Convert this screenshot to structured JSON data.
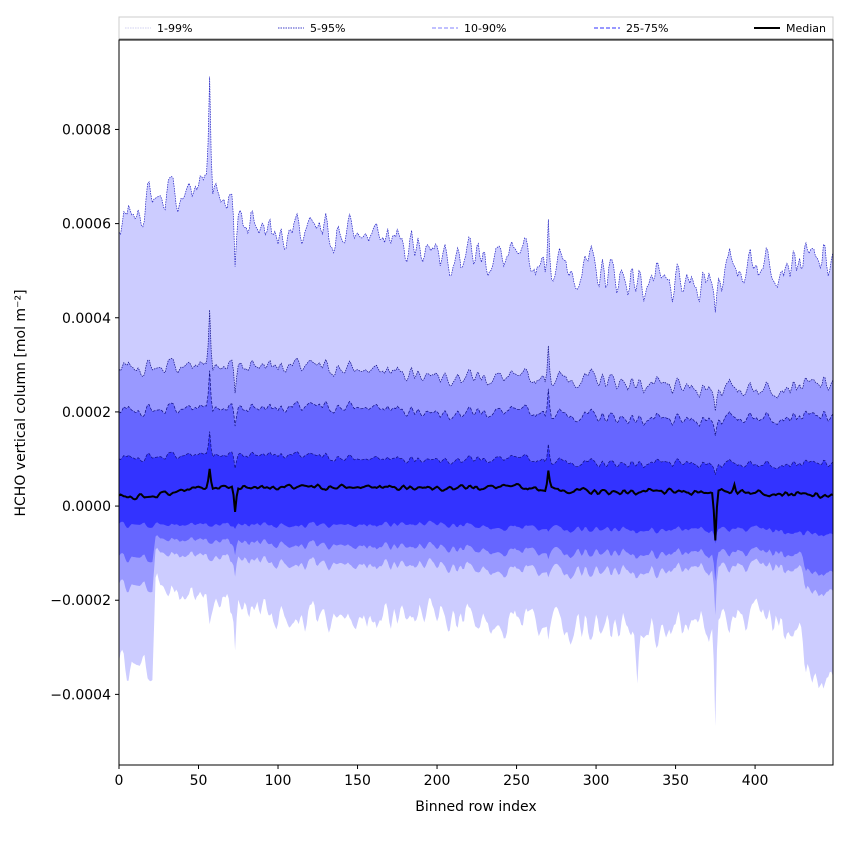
{
  "chart_data": {
    "type": "area",
    "xlabel": "Binned row index",
    "ylabel": "HCHO vertical column [mol m⁻²]",
    "xlim": [
      0,
      449
    ],
    "ylim": [
      -0.00055,
      0.00099
    ],
    "xticks": [
      0,
      50,
      100,
      150,
      200,
      250,
      300,
      350,
      400
    ],
    "yticks": [
      -0.0004,
      -0.0002,
      0.0,
      0.0002,
      0.0004,
      0.0006,
      0.0008
    ],
    "ytick_labels": [
      "−0.0004",
      "−0.0002",
      "0.0000",
      "0.0002",
      "0.0004",
      "0.0006",
      "0.0008"
    ],
    "n_points": 450,
    "legend": {
      "placement": "top, above plot",
      "entries": [
        {
          "label": "1-99%",
          "color": "#d0d0f0",
          "style": "dotted"
        },
        {
          "label": "5-95%",
          "color": "#4040c8",
          "style": "dotted"
        },
        {
          "label": "10-90%",
          "color": "#8080ff",
          "style": "dashed"
        },
        {
          "label": "25-75%",
          "color": "#3030ff",
          "style": "dashed"
        },
        {
          "label": "Median",
          "color": "#000000",
          "style": "solid"
        }
      ]
    },
    "series": [
      {
        "name": "1-99%",
        "fill": "#ccccff",
        "upper_knots": [
          [
            0,
            0.00058
          ],
          [
            10,
            0.00062
          ],
          [
            22,
            0.00066
          ],
          [
            40,
            0.00066
          ],
          [
            57,
            0.0007
          ],
          [
            75,
            0.00062
          ],
          [
            100,
            0.00058
          ],
          [
            150,
            0.00058
          ],
          [
            200,
            0.00055
          ],
          [
            250,
            0.00052
          ],
          [
            300,
            0.0005
          ],
          [
            350,
            0.00046
          ],
          [
            400,
            0.00052
          ],
          [
            449,
            0.00052
          ]
        ],
        "lower_knots": [
          [
            0,
            -0.00034
          ],
          [
            21,
            -0.00034
          ],
          [
            23,
            -0.00017
          ],
          [
            50,
            -0.0002
          ],
          [
            100,
            -0.00023
          ],
          [
            150,
            -0.00024
          ],
          [
            200,
            -0.00024
          ],
          [
            250,
            -0.00024
          ],
          [
            300,
            -0.00026
          ],
          [
            350,
            -0.00026
          ],
          [
            400,
            -0.00024
          ],
          [
            430,
            -0.00026
          ],
          [
            432,
            -0.00036
          ],
          [
            449,
            -0.00036
          ]
        ],
        "spikes": [
          [
            57,
            0.00022,
            -3e-05
          ],
          [
            73,
            -0.00012,
            -0.0001
          ],
          [
            270,
            0.00012,
            -5e-05
          ],
          [
            375,
            -6e-05,
            -0.00022
          ],
          [
            326,
            0.0,
            -8e-05
          ]
        ]
      },
      {
        "name": "5-95%",
        "fill": "#9999ff",
        "upper_knots": [
          [
            0,
            0.00029
          ],
          [
            50,
            0.0003
          ],
          [
            100,
            0.0003
          ],
          [
            150,
            0.00029
          ],
          [
            200,
            0.00028
          ],
          [
            250,
            0.00027
          ],
          [
            300,
            0.00027
          ],
          [
            350,
            0.00025
          ],
          [
            400,
            0.00025
          ],
          [
            449,
            0.00026
          ]
        ],
        "lower_knots": [
          [
            0,
            -0.00017
          ],
          [
            21,
            -0.00017
          ],
          [
            23,
            -0.0001
          ],
          [
            100,
            -0.00012
          ],
          [
            200,
            -0.00013
          ],
          [
            300,
            -0.00014
          ],
          [
            400,
            -0.00013
          ],
          [
            430,
            -0.00013
          ],
          [
            432,
            -0.00018
          ],
          [
            449,
            -0.00018
          ]
        ],
        "spikes": [
          [
            57,
            0.00012,
            0.0
          ],
          [
            73,
            -6e-05,
            -4e-05
          ],
          [
            270,
            8e-05,
            -2e-05
          ],
          [
            375,
            -4e-05,
            -0.0001
          ]
        ]
      },
      {
        "name": "10-90%",
        "fill": "#6666ff",
        "upper_knots": [
          [
            0,
            0.0002
          ],
          [
            50,
            0.00021
          ],
          [
            100,
            0.00021
          ],
          [
            150,
            0.00021
          ],
          [
            200,
            0.0002
          ],
          [
            250,
            0.0002
          ],
          [
            300,
            0.00019
          ],
          [
            350,
            0.00018
          ],
          [
            400,
            0.00019
          ],
          [
            449,
            0.00019
          ]
        ],
        "lower_knots": [
          [
            0,
            -0.00011
          ],
          [
            21,
            -0.00011
          ],
          [
            23,
            -7e-05
          ],
          [
            100,
            -8e-05
          ],
          [
            200,
            -9e-05
          ],
          [
            300,
            -0.0001
          ],
          [
            400,
            -0.0001
          ],
          [
            430,
            -0.0001
          ],
          [
            432,
            -0.00014
          ],
          [
            449,
            -0.00014
          ]
        ],
        "spikes": [
          [
            57,
            8e-05,
            0.0
          ],
          [
            73,
            -4e-05,
            -3e-05
          ],
          [
            270,
            6e-05,
            -2e-05
          ],
          [
            375,
            -3e-05,
            -6e-05
          ]
        ]
      },
      {
        "name": "25-75%",
        "fill": "#3333ff",
        "upper_knots": [
          [
            0,
            0.0001
          ],
          [
            50,
            0.00011
          ],
          [
            100,
            0.00011
          ],
          [
            150,
            0.0001
          ],
          [
            200,
            0.0001
          ],
          [
            250,
            0.0001
          ],
          [
            300,
            9e-05
          ],
          [
            350,
            9e-05
          ],
          [
            400,
            9e-05
          ],
          [
            449,
            9e-05
          ]
        ],
        "lower_knots": [
          [
            0,
            -4e-05
          ],
          [
            100,
            -4e-05
          ],
          [
            200,
            -4e-05
          ],
          [
            300,
            -5e-05
          ],
          [
            400,
            -5e-05
          ],
          [
            449,
            -6e-05
          ]
        ],
        "spikes": [
          [
            57,
            5e-05,
            0.0
          ],
          [
            73,
            -3e-05,
            -1e-05
          ],
          [
            270,
            4e-05,
            -1e-05
          ],
          [
            375,
            -2e-05,
            -3e-05
          ]
        ]
      },
      {
        "name": "Median",
        "color": "#000000",
        "knots": [
          [
            0,
            2e-05
          ],
          [
            20,
            2e-05
          ],
          [
            50,
            4e-05
          ],
          [
            100,
            4e-05
          ],
          [
            150,
            4e-05
          ],
          [
            200,
            4e-05
          ],
          [
            250,
            4e-05
          ],
          [
            300,
            3e-05
          ],
          [
            350,
            3e-05
          ],
          [
            400,
            3e-05
          ],
          [
            449,
            2e-05
          ]
        ],
        "spikes": [
          [
            57,
            4e-05,
            0.0
          ],
          [
            73,
            -5e-05,
            0.0
          ],
          [
            270,
            4e-05,
            0.0
          ],
          [
            375,
            -0.0001,
            0.0
          ],
          [
            387,
            2e-05,
            0.0
          ]
        ]
      }
    ]
  }
}
